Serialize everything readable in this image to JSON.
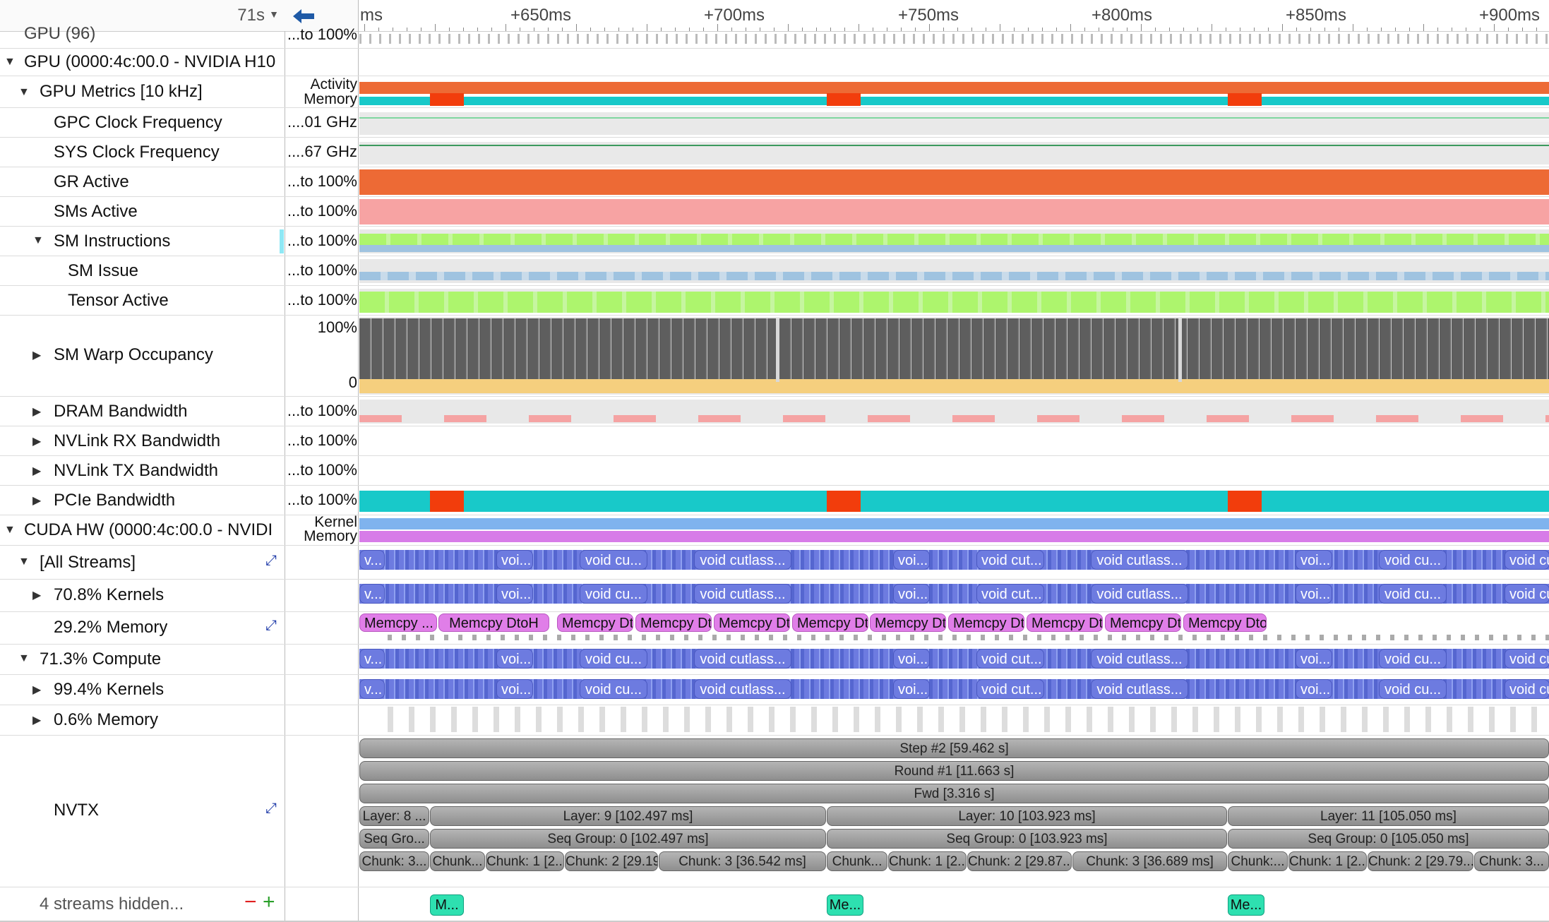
{
  "header": {
    "time_offset": "71s",
    "back_icon": "arrow-left-icon",
    "ruler": [
      "ms",
      "+650ms",
      "+700ms",
      "+750ms",
      "+800ms",
      "+850ms",
      "+900ms"
    ]
  },
  "rows": {
    "gpu_prev": {
      "label": "GPU (96)",
      "scale": "...to 100%"
    },
    "gpu": {
      "label": "GPU (0000:4c:00.0 - NVIDIA H10"
    },
    "gpu_metrics": {
      "label": "GPU Metrics [10 kHz]",
      "scale_top": "Activity",
      "scale_bottom": "Memory"
    },
    "gpc_clock": {
      "label": "GPC Clock Frequency",
      "scale": "....01 GHz"
    },
    "sys_clock": {
      "label": "SYS Clock Frequency",
      "scale": "....67 GHz"
    },
    "gr_active": {
      "label": "GR Active",
      "scale": "...to 100%"
    },
    "sms_active": {
      "label": "SMs Active",
      "scale": "...to 100%"
    },
    "sm_instructions": {
      "label": "SM Instructions",
      "scale": "...to 100%"
    },
    "sm_issue": {
      "label": "SM Issue",
      "scale": "...to 100%"
    },
    "tensor_active": {
      "label": "Tensor Active",
      "scale": "...to 100%"
    },
    "sm_warp": {
      "label": "SM Warp Occupancy",
      "scale_top": "100%",
      "scale_bottom": "0"
    },
    "dram": {
      "label": "DRAM Bandwidth",
      "scale": "...to 100%"
    },
    "nvlink_rx": {
      "label": "NVLink RX Bandwidth",
      "scale": "...to 100%"
    },
    "nvlink_tx": {
      "label": "NVLink TX Bandwidth",
      "scale": "...to 100%"
    },
    "pcie": {
      "label": "PCIe Bandwidth",
      "scale": "...to 100%"
    },
    "cuda_hw": {
      "label": "CUDA HW (0000:4c:00.0 - NVIDI",
      "scale_top": "Kernel",
      "scale_bottom": "Memory"
    },
    "all_streams": {
      "label": "[All Streams]"
    },
    "kernels_708": {
      "label": "70.8% Kernels"
    },
    "memory_292": {
      "label": "29.2% Memory"
    },
    "compute_713": {
      "label": "71.3% Compute"
    },
    "kernels_994": {
      "label": "99.4% Kernels"
    },
    "memory_06": {
      "label": "0.6% Memory"
    },
    "nvtx": {
      "label": "NVTX"
    },
    "hidden": {
      "label": "4 streams hidden...",
      "minus": "−",
      "plus": "+"
    }
  },
  "kernel_labels": [
    "v...",
    "voi...",
    "void cu...",
    "void cutlass...",
    "voi...",
    "void cut...",
    "void cutlass...",
    "voi...",
    "void cu...",
    "void cu..."
  ],
  "memcpy_labels": [
    "Memcpy ...",
    "Memcpy DtoH",
    "Memcpy DtoH",
    "Memcpy DtoH",
    "Memcpy DtoH",
    "Memcpy DtoH",
    "Memcpy DtoH",
    "Memcpy DtoH",
    "Memcpy DtoH",
    "Memcpy DtoH",
    "Memcpy DtoH"
  ],
  "nvtx": {
    "step": "Step #2 [59.462 s]",
    "round": "Round #1 [11.663 s]",
    "fwd": "Fwd [3.316 s]",
    "layers": [
      "Layer: 8 ...",
      "Layer: 9 [102.497 ms]",
      "Layer: 10 [103.923 ms]",
      "Layer: 11 [105.050 ms]"
    ],
    "seq_groups": [
      "Seq Gro...",
      "Seq Group: 0 [102.497 ms]",
      "Seq Group: 0 [103.923 ms]",
      "Seq Group: 0 [105.050 ms]"
    ],
    "chunks": [
      "Chunk: 3...",
      "Chunk...",
      "Chunk: 1 [2...",
      "Chunk: 2 [29.19...",
      "Chunk: 3 [36.542 ms]",
      "Chunk...",
      "Chunk: 1 [2...",
      "Chunk: 2 [29.87...",
      "Chunk: 3 [36.689 ms]",
      "Chunk:...",
      "Chunk: 1 [2...",
      "Chunk: 2 [29.79...",
      "Chunk: 3..."
    ]
  },
  "markers": [
    "M...",
    "Me...",
    "Me..."
  ],
  "colors": {
    "gr_active": "#ed6a35",
    "sms_active": "#f7a3a3",
    "sm_instr": "#adf56d",
    "sm_issue": "#9fc3e0",
    "warp_dark": "#5e5e5e",
    "warp_light": "#f5cf7e",
    "pcie_cyan": "#18c9c9",
    "pcie_red": "#f23d0c",
    "kernel_blue": "#6d7be0",
    "memory_purple": "#e07ee8",
    "nvtx_grey": "#9e9e9e",
    "marker_green": "#2ee0b0"
  }
}
